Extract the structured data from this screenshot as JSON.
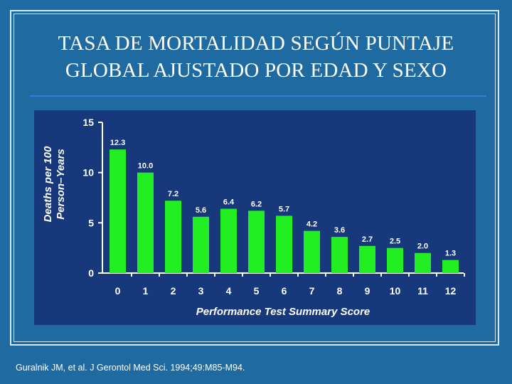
{
  "slide": {
    "title_line1": "TASA DE MORTALIDAD SEGÚN PUNTAJE",
    "title_line2": "GLOBAL AJUSTADO POR EDAD Y SEXO",
    "citation": "Guralnik JM, et al. J Gerontol Med Sci. 1994;49:M85-M94."
  },
  "colors": {
    "background": "#1f6aa0",
    "panel": "#17387a",
    "bar": "#22ee22",
    "text": "#ffffff"
  },
  "chart_data": {
    "type": "bar",
    "categories": [
      "0",
      "1",
      "2",
      "3",
      "4",
      "5",
      "6",
      "7",
      "8",
      "9",
      "10",
      "11",
      "12"
    ],
    "values": [
      12.3,
      10.0,
      7.2,
      5.6,
      6.4,
      6.2,
      5.7,
      4.2,
      3.6,
      2.7,
      2.5,
      2.0,
      1.3
    ],
    "data_labels": [
      "12.3",
      "10.0",
      "7.2",
      "5.6",
      "6.4",
      "6.2",
      "5.7",
      "4.2",
      "3.6",
      "2.7",
      "2.5",
      "2.0",
      "1.3"
    ],
    "yticks": [
      0,
      5,
      10,
      15
    ],
    "ytick_labels": [
      "0",
      "5",
      "10",
      "15"
    ],
    "ylim": [
      0,
      15
    ],
    "xlabel": "Performance Test Summary Score",
    "ylabel_line1": "Deaths per 100",
    "ylabel_line2": "Person–Years",
    "title": "",
    "grid": false,
    "legend": "none"
  }
}
